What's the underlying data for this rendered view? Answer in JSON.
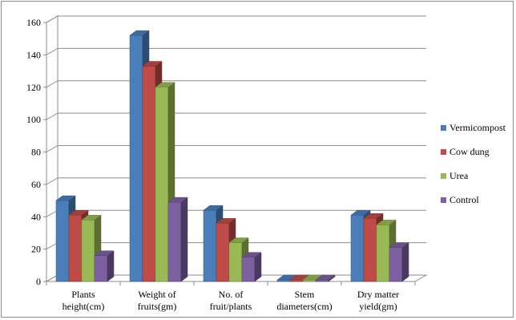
{
  "chart_data": {
    "type": "bar",
    "title": "",
    "xlabel": "",
    "ylabel": "",
    "ylim": [
      0,
      160
    ],
    "yticks": [
      0,
      20,
      40,
      60,
      80,
      100,
      120,
      140,
      160
    ],
    "grid": true,
    "legend_position": "right",
    "style": "3d-clustered-column",
    "categories": [
      [
        "Plants",
        "height(cm)"
      ],
      [
        "Weight of",
        "fruits(gm)"
      ],
      [
        "No. of",
        "fruit/plants"
      ],
      [
        "Stem",
        "diameters(cm)"
      ],
      [
        "Dry matter",
        "yield(gm)"
      ]
    ],
    "series": [
      {
        "name": "Vermicompost",
        "color": "#4a7ebb",
        "values": [
          50,
          152,
          44,
          1,
          41
        ]
      },
      {
        "name": "Cow dung",
        "color": "#be4b48",
        "values": [
          41,
          133,
          36,
          1,
          39
        ]
      },
      {
        "name": "Urea",
        "color": "#98b954",
        "values": [
          38,
          120,
          24,
          1,
          35
        ]
      },
      {
        "name": "Control",
        "color": "#7d60a0",
        "values": [
          16,
          49,
          15,
          1,
          21
        ]
      }
    ]
  }
}
